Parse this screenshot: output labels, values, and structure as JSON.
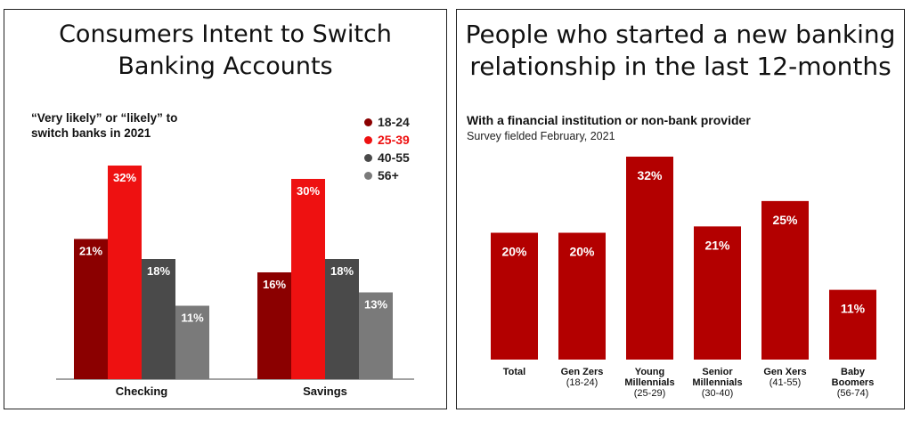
{
  "left_panel": {
    "title_line1": "Consumers Intent to Switch",
    "title_line2": "Banking Accounts",
    "subtitle_line1": "“Very likely” or “likely” to",
    "subtitle_line2": "switch banks in 2021"
  },
  "right_panel": {
    "title_line1": "People who started a new banking",
    "title_line2": "relationship in the last 12-months",
    "subtitle": "With a financial institution or non-bank provider",
    "note": "Survey fielded February, 2021"
  },
  "chart_data": [
    {
      "type": "bar",
      "title": "Consumers Intent to Switch Banking Accounts",
      "categories": [
        "Checking",
        "Savings"
      ],
      "series": [
        {
          "name": "18-24",
          "color": "#8b0000",
          "values": [
            21,
            16
          ]
        },
        {
          "name": "25-39",
          "color": "#ee1111",
          "values": [
            32,
            30
          ]
        },
        {
          "name": "40-55",
          "color": "#4a4a4a",
          "values": [
            18,
            18
          ]
        },
        {
          "name": "56+",
          "color": "#7a7a7a",
          "values": [
            11,
            13
          ]
        }
      ],
      "value_suffix": "%",
      "ylim": [
        0,
        34
      ],
      "legend_position": "top-right",
      "grid": false
    },
    {
      "type": "bar",
      "title": "People who started a new banking relationship in the last 12-months",
      "categories": [
        {
          "label": [
            "Total"
          ]
        },
        {
          "label": [
            "Gen Zers",
            "(18-24)"
          ]
        },
        {
          "label": [
            "Young",
            "Millennials",
            "(25-29)"
          ]
        },
        {
          "label": [
            "Senior",
            "Millennials",
            "(30-40)"
          ]
        },
        {
          "label": [
            "Gen Xers",
            "(41-55)"
          ]
        },
        {
          "label": [
            "Baby",
            "Boomers",
            "(56-74)"
          ]
        }
      ],
      "values": [
        20,
        20,
        32,
        21,
        25,
        11
      ],
      "color": "#b30000",
      "value_suffix": "%",
      "ylim": [
        0,
        33
      ],
      "grid": false
    }
  ]
}
